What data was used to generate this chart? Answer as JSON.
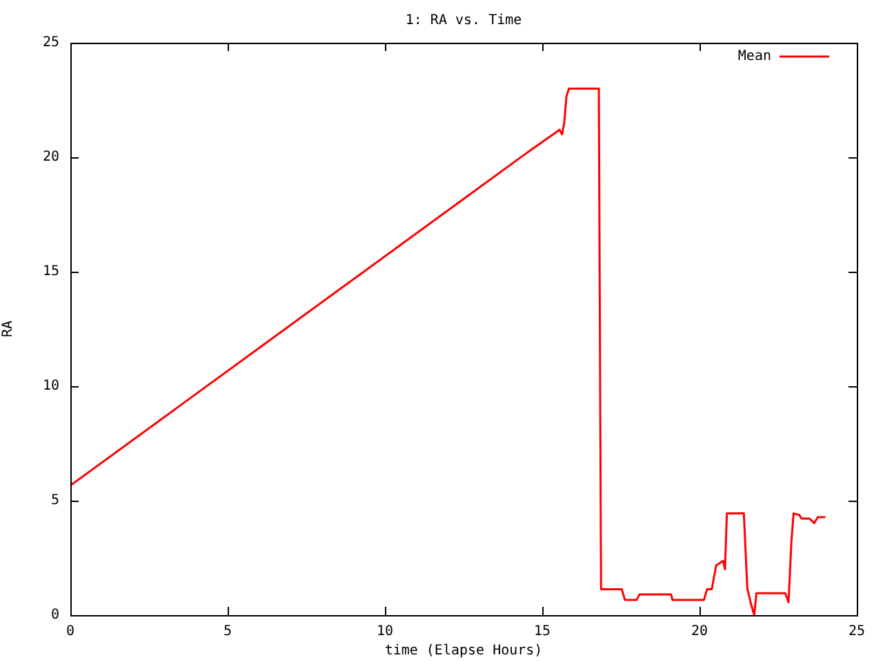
{
  "chart_data": {
    "type": "line",
    "title": "1: RA vs. Time",
    "xlabel": "time (Elapse Hours)",
    "ylabel": "RA",
    "x": [
      0,
      14.46,
      15.55,
      15.63,
      15.7,
      15.77,
      15.85,
      16.8,
      16.87,
      17.53,
      17.63,
      18.0,
      18.09,
      19.1,
      19.14,
      20.14,
      20.24,
      20.39,
      20.53,
      20.75,
      20.81,
      20.87,
      21.41,
      21.52,
      21.63,
      21.74,
      21.81,
      22.73,
      22.83,
      22.92,
      22.99,
      23.17,
      23.24,
      23.49,
      23.65,
      23.76,
      24.0
    ],
    "series": [
      {
        "name": "Mean",
        "color": "#ff0000",
        "values": [
          5.66,
          20.14,
          21.2,
          21.0,
          21.5,
          22.65,
          23.0,
          23.0,
          1.13,
          1.13,
          0.66,
          0.66,
          0.9,
          0.9,
          0.66,
          0.66,
          1.13,
          1.13,
          2.17,
          2.37,
          2.0,
          4.44,
          4.44,
          1.17,
          0.52,
          0,
          0.96,
          0.96,
          0.56,
          3.17,
          4.44,
          4.38,
          4.22,
          4.22,
          4.02,
          4.28,
          4.28
        ]
      }
    ],
    "xlim": [
      0,
      25
    ],
    "xticks": [
      0,
      5,
      10,
      15,
      20,
      25
    ],
    "ylim": [
      0,
      25
    ],
    "yticks": [
      0,
      5,
      10,
      15,
      20,
      25
    ],
    "legend": "top right",
    "marker": "none",
    "line_style": "solid"
  }
}
